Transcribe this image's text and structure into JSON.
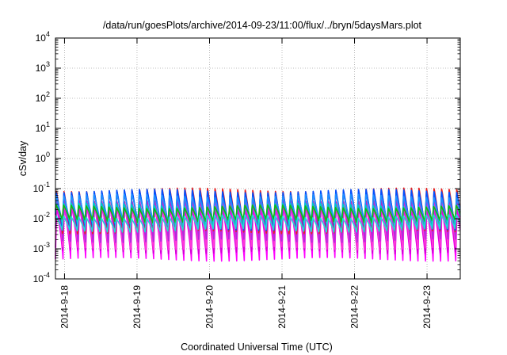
{
  "chart_data": {
    "type": "area",
    "title": "/data/run/goesPlots/archive/2014-09-23/11:00/flux/../bryn/5daysMars.plot",
    "xlabel": "Coordinated Universal Time (UTC)",
    "ylabel": "cSv/day",
    "y_scale": "log",
    "ylim": [
      0.0001,
      10000
    ],
    "xlim": [
      "2014-09-17T21:00",
      "2014-09-23T11:00"
    ],
    "grid": true,
    "x_ticks": [
      {
        "label": "2014-9-18",
        "date": "2014-09-18"
      },
      {
        "label": "2014-9-19",
        "date": "2014-09-19"
      },
      {
        "label": "2014-9-20",
        "date": "2014-09-20"
      },
      {
        "label": "2014-9-21",
        "date": "2014-09-21"
      },
      {
        "label": "2014-9-22",
        "date": "2014-09-22"
      },
      {
        "label": "2014-9-23",
        "date": "2014-09-23"
      }
    ],
    "y_ticks": [
      {
        "base": "10",
        "exp": "-4",
        "value": 0.0001
      },
      {
        "base": "10",
        "exp": "-3",
        "value": 0.001
      },
      {
        "base": "10",
        "exp": "-2",
        "value": 0.01
      },
      {
        "base": "10",
        "exp": "-1",
        "value": 0.1
      },
      {
        "base": "10",
        "exp": "0",
        "value": 1
      },
      {
        "base": "10",
        "exp": "1",
        "value": 10
      },
      {
        "base": "10",
        "exp": "2",
        "value": 100
      },
      {
        "base": "10",
        "exp": "3",
        "value": 1000
      },
      {
        "base": "10",
        "exp": "4",
        "value": 10000
      }
    ],
    "cycles_per_day": 9.6,
    "series": [
      {
        "color": "#ff00ff",
        "peak": 0.026,
        "trough": 0.00045
      },
      {
        "color": "#d400d4",
        "peak": 0.03,
        "trough": 0.0006
      },
      {
        "color": "#ff3ad8",
        "peak": 0.035,
        "trough": 0.0009
      },
      {
        "color": "#b02cdc",
        "peak": 0.045,
        "trough": 0.0018
      },
      {
        "color": "#e52020",
        "peak": 0.095,
        "trough": 0.0028
      },
      {
        "color": "#0050ff",
        "peak": 0.085,
        "trough": 0.004
      },
      {
        "color": "#1e90ff",
        "peak": 0.06,
        "trough": 0.006
      },
      {
        "color": "#00c8c8",
        "peak": 0.03,
        "trough": 0.006
      },
      {
        "color": "#11b811",
        "peak": 0.025,
        "trough": 0.008
      },
      {
        "color": "#20d8d8",
        "peak": 0.012,
        "trough": 0.004
      }
    ]
  }
}
